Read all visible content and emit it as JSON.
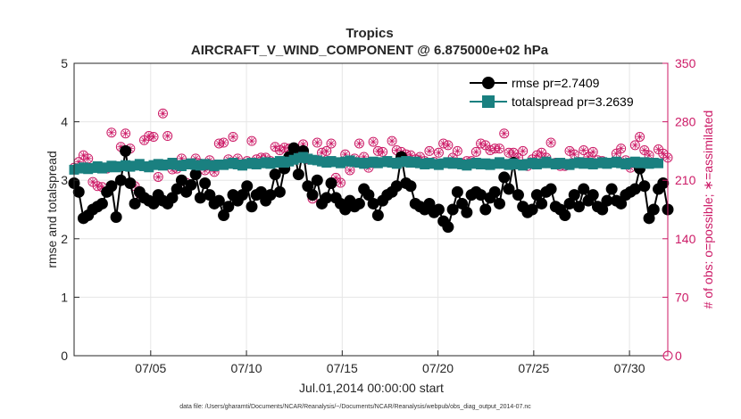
{
  "chart_data": {
    "type": "line",
    "title": "Tropics",
    "subtitle": "AIRCRAFT_V_WIND_COMPONENT @ 6.875000e+02 hPa",
    "xlabel": "Jul.01,2014 00:00:00 start",
    "ylabel": "rmse and totalspread",
    "ylabel_right": "# of obs: o=possible; ∗=assimilated",
    "xlim": [
      1,
      32
    ],
    "ylim": [
      0,
      5
    ],
    "ylim_right": [
      0,
      350
    ],
    "x_ticks": [
      5,
      10,
      15,
      20,
      25,
      30
    ],
    "x_tick_labels": [
      "07/05",
      "07/10",
      "07/15",
      "07/20",
      "07/25",
      "07/30"
    ],
    "y_ticks": [
      0,
      1,
      2,
      3,
      4,
      5
    ],
    "y_tick_labels": [
      "0",
      "1",
      "2",
      "3",
      "4",
      "5"
    ],
    "y_ticks_right": [
      0,
      70,
      140,
      210,
      280,
      350
    ],
    "y_tick_labels_right": [
      "0",
      "70",
      "140",
      "210",
      "280",
      "350"
    ],
    "series": [
      {
        "name": "rmse",
        "legend": "rmse pr=2.7409",
        "color": "#000000",
        "marker": "circle",
        "values": [
          2.95,
          2.8,
          2.35,
          2.4,
          2.5,
          2.55,
          2.6,
          2.8,
          2.9,
          2.37,
          3.0,
          3.5,
          2.95,
          2.6,
          2.8,
          2.7,
          2.65,
          2.6,
          2.75,
          2.65,
          2.6,
          2.7,
          2.85,
          3.0,
          2.8,
          2.92,
          3.1,
          2.7,
          2.95,
          2.75,
          2.6,
          2.65,
          2.4,
          2.55,
          2.75,
          2.65,
          2.75,
          2.9,
          2.55,
          2.75,
          2.8,
          2.65,
          2.75,
          3.1,
          2.8,
          3.2,
          3.4,
          3.55,
          3.1,
          3.5,
          2.9,
          2.75,
          3.0,
          2.6,
          2.7,
          2.95,
          2.7,
          2.6,
          2.5,
          2.65,
          2.55,
          2.6,
          2.85,
          2.75,
          2.6,
          2.4,
          2.65,
          2.75,
          2.8,
          2.9,
          3.4,
          2.95,
          2.9,
          2.6,
          2.55,
          2.5,
          2.6,
          2.45,
          2.5,
          2.3,
          2.2,
          2.5,
          2.8,
          2.6,
          2.45,
          2.75,
          2.8,
          2.75,
          2.5,
          2.7,
          2.8,
          2.6,
          3.05,
          2.85,
          3.3,
          2.75,
          2.55,
          2.45,
          2.5,
          2.75,
          2.6,
          2.8,
          2.85,
          2.55,
          2.5,
          2.4,
          2.6,
          2.75,
          2.55,
          2.85,
          2.65,
          2.75,
          2.55,
          2.5,
          2.65,
          2.85,
          2.65,
          2.6,
          2.75,
          2.8,
          2.85,
          3.2,
          2.9,
          2.35,
          2.5,
          2.85,
          2.95,
          2.5
        ]
      },
      {
        "name": "totalspread",
        "legend": "totalspread pr=3.2639",
        "color": "#1a8080",
        "marker": "square",
        "values": [
          3.18,
          3.2,
          3.22,
          3.19,
          3.21,
          3.24,
          3.2,
          3.22,
          3.25,
          3.22,
          3.24,
          3.26,
          3.23,
          3.25,
          3.28,
          3.24,
          3.22,
          3.26,
          3.28,
          3.25,
          3.27,
          3.3,
          3.26,
          3.24,
          3.27,
          3.29,
          3.26,
          3.25,
          3.28,
          3.26,
          3.24,
          3.27,
          3.26,
          3.28,
          3.3,
          3.27,
          3.25,
          3.28,
          3.3,
          3.27,
          3.29,
          3.31,
          3.28,
          3.3,
          3.33,
          3.3,
          3.32,
          3.35,
          3.38,
          3.4,
          3.37,
          3.35,
          3.34,
          3.32,
          3.3,
          3.33,
          3.31,
          3.29,
          3.32,
          3.34,
          3.31,
          3.3,
          3.28,
          3.3,
          3.32,
          3.29,
          3.31,
          3.33,
          3.3,
          3.28,
          3.31,
          3.33,
          3.3,
          3.32,
          3.29,
          3.27,
          3.3,
          3.28,
          3.26,
          3.29,
          3.31,
          3.28,
          3.3,
          3.27,
          3.25,
          3.28,
          3.3,
          3.27,
          3.29,
          3.26,
          3.28,
          3.31,
          3.28,
          3.26,
          3.29,
          3.27,
          3.25,
          3.28,
          3.3,
          3.27,
          3.29,
          3.32,
          3.29,
          3.27,
          3.3,
          3.28,
          3.26,
          3.29,
          3.31,
          3.28,
          3.3,
          3.27,
          3.29,
          3.31,
          3.28,
          3.3,
          3.32,
          3.29,
          3.27,
          3.3,
          3.32,
          3.29,
          3.31,
          3.28,
          3.3,
          3.29
        ]
      },
      {
        "name": "obs_possible",
        "legend": "o=possible",
        "color": "#cc1a66",
        "marker": "circle-open",
        "values": [
          225,
          232,
          240,
          236,
          208,
          203,
          202,
          224,
          267,
          227,
          250,
          266,
          248,
          203,
          194,
          258,
          263,
          262,
          214,
          290,
          263,
          223,
          224,
          236,
          207,
          229,
          236,
          230,
          222,
          234,
          220,
          254,
          255,
          235,
          262,
          236,
          229,
          233,
          257,
          235,
          237,
          237,
          233,
          250,
          246,
          249,
          248,
          249,
          244,
          253,
          235,
          188,
          255,
          243,
          245,
          254,
          213,
          207,
          241,
          222,
          236,
          254,
          238,
          225,
          256,
          245,
          244,
          233,
          257,
          246,
          244,
          241,
          240,
          235,
          238,
          233,
          245,
          232,
          243,
          254,
          252,
          237,
          245,
          230,
          233,
          233,
          244,
          254,
          252,
          246,
          248,
          248,
          266,
          243,
          243,
          237,
          245,
          227,
          235,
          240,
          243,
          237,
          255,
          231,
          227,
          227,
          245,
          241,
          232,
          246,
          238,
          244,
          234,
          233,
          230,
          231,
          242,
          248,
          234,
          225,
          252,
          262,
          246,
          240,
          231,
          247,
          242,
          237
        ]
      },
      {
        "name": "obs_assimilated",
        "legend": "∗=assimilated",
        "color": "#cc1a66",
        "marker": "star",
        "values": [
          225,
          232,
          240,
          236,
          208,
          203,
          202,
          224,
          267,
          227,
          250,
          266,
          248,
          203,
          194,
          258,
          263,
          262,
          214,
          290,
          263,
          223,
          224,
          236,
          207,
          229,
          236,
          230,
          222,
          234,
          220,
          254,
          255,
          235,
          262,
          236,
          229,
          233,
          257,
          235,
          237,
          237,
          233,
          250,
          246,
          249,
          248,
          249,
          244,
          253,
          235,
          188,
          255,
          243,
          245,
          254,
          213,
          207,
          241,
          222,
          236,
          254,
          238,
          225,
          256,
          245,
          244,
          233,
          257,
          246,
          244,
          241,
          240,
          235,
          238,
          233,
          245,
          232,
          243,
          254,
          252,
          237,
          245,
          230,
          233,
          233,
          244,
          254,
          252,
          246,
          248,
          248,
          266,
          243,
          243,
          237,
          245,
          227,
          235,
          240,
          243,
          237,
          255,
          231,
          227,
          227,
          245,
          241,
          232,
          246,
          238,
          244,
          234,
          233,
          230,
          231,
          242,
          248,
          234,
          225,
          252,
          262,
          246,
          240,
          231,
          247,
          242,
          237
        ]
      }
    ]
  },
  "footer": "data file: /Users/gharamti/Documents/NCAR/Reanalysis/~/Documents/NCAR/Reanalysis/webpub/obs_diag_output_2014-07.nc"
}
